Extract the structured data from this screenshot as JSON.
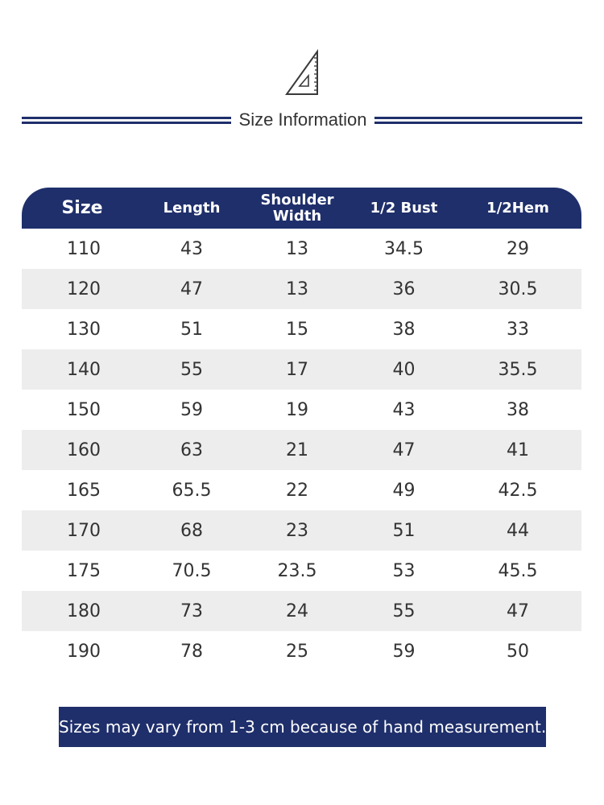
{
  "header": {
    "icon": "set-square-ruler-icon",
    "title": "Size Information"
  },
  "table": {
    "columns": [
      "Size",
      "Length",
      "Shoulder Width",
      "1/2 Bust",
      "1/2Hem"
    ],
    "column_lines": {
      "shoulder_line1": "Shoulder",
      "shoulder_line2": "Width"
    },
    "rows": [
      [
        "110",
        "43",
        "13",
        "34.5",
        "29"
      ],
      [
        "120",
        "47",
        "13",
        "36",
        "30.5"
      ],
      [
        "130",
        "51",
        "15",
        "38",
        "33"
      ],
      [
        "140",
        "55",
        "17",
        "40",
        "35.5"
      ],
      [
        "150",
        "59",
        "19",
        "43",
        "38"
      ],
      [
        "160",
        "63",
        "21",
        "47",
        "41"
      ],
      [
        "165",
        "65.5",
        "22",
        "49",
        "42.5"
      ],
      [
        "170",
        "68",
        "23",
        "51",
        "44"
      ],
      [
        "175",
        "70.5",
        "23.5",
        "53",
        "45.5"
      ],
      [
        "180",
        "73",
        "24",
        "55",
        "47"
      ],
      [
        "190",
        "78",
        "25",
        "59",
        "50"
      ]
    ]
  },
  "note": "Sizes may vary from 1-3 cm because of  hand measurement.",
  "colors": {
    "accent": "#1f2f6b",
    "row_alt": "#ededed",
    "text": "#333333"
  }
}
